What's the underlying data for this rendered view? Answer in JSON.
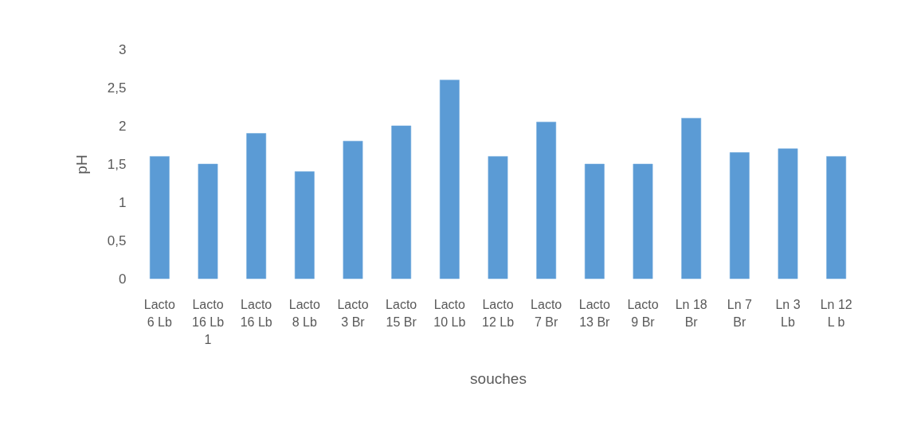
{
  "chart_data": {
    "type": "bar",
    "xlabel": "souches",
    "ylabel": "pH",
    "categories": [
      "Lacto 6 Lb",
      "Lacto 16 Lb 1",
      "Lacto 16 Lb",
      "Lacto 8 Lb",
      "Lacto 3 Br",
      "Lacto 15 Br",
      "Lacto 10 Lb",
      "Lacto 12 Lb",
      "Lacto 7 Br",
      "Lacto 13 Br",
      "Lacto 9 Br",
      "Ln 18 Br",
      "Ln 7 Br",
      "Ln 3 Lb",
      "Ln 12 L b"
    ],
    "values": [
      1.6,
      1.5,
      1.9,
      1.4,
      1.8,
      2,
      2.6,
      1.6,
      2.05,
      1.5,
      1.5,
      2.1,
      1.65,
      1.7,
      1.6
    ],
    "color": "#5b9bd5",
    "ylim": [
      0,
      3
    ],
    "yticks": [
      {
        "value": 0,
        "label": "0"
      },
      {
        "value": 0.5,
        "label": "0,5"
      },
      {
        "value": 1,
        "label": "1"
      },
      {
        "value": 1.5,
        "label": "1,5"
      },
      {
        "value": 2,
        "label": "2"
      },
      {
        "value": 2.5,
        "label": "2,5"
      },
      {
        "value": 3,
        "label": "3"
      }
    ],
    "grid": false
  }
}
